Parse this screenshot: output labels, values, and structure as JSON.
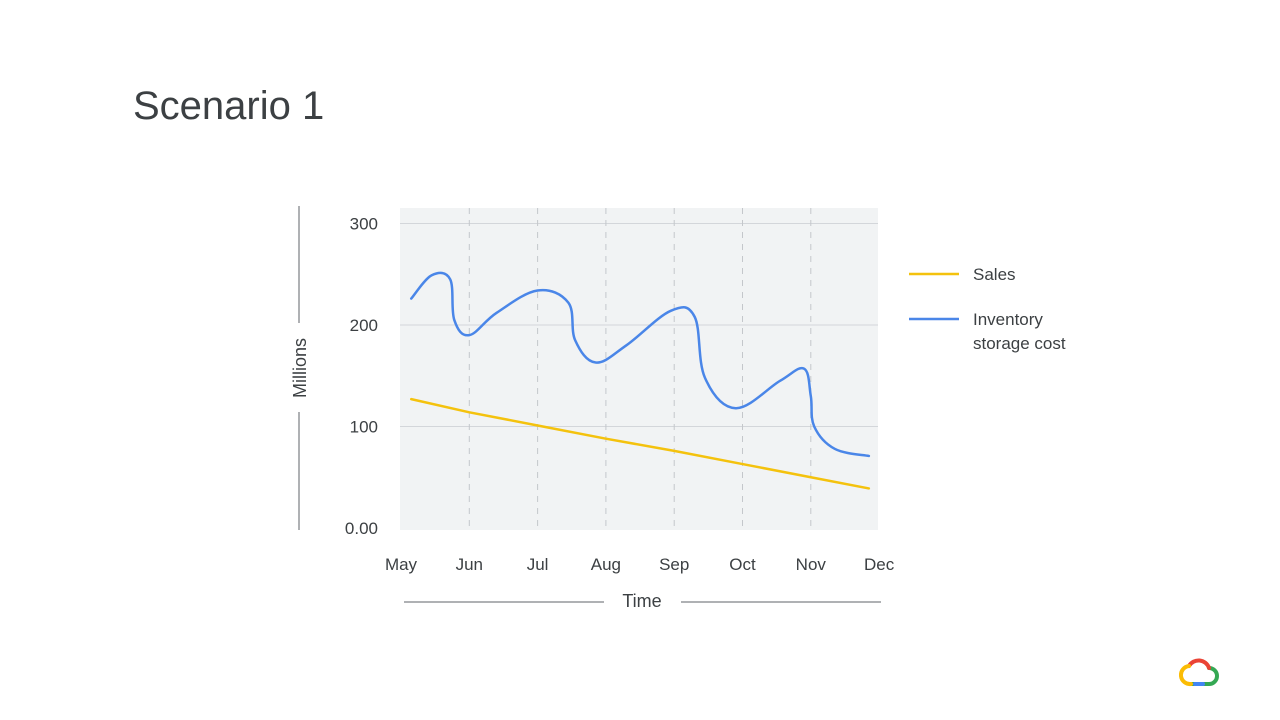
{
  "slide": {
    "title": "Scenario 1"
  },
  "chart_data": {
    "type": "line",
    "title": "",
    "xlabel": "Time",
    "ylabel": "Millions",
    "categories": [
      "May",
      "Jun",
      "Jul",
      "Aug",
      "Sep",
      "Oct",
      "Nov",
      "Dec"
    ],
    "yticks": [
      "0.00",
      "100",
      "200",
      "300"
    ],
    "ylim": [
      0,
      310
    ],
    "grid": true,
    "legend_position": "right",
    "series": [
      {
        "name": "Sales",
        "color": "#f4c20d",
        "points": [
          [
            0.15,
            127
          ],
          [
            1.0,
            114
          ],
          [
            2.0,
            101
          ],
          [
            3.0,
            88
          ],
          [
            4.0,
            76
          ],
          [
            5.0,
            63
          ],
          [
            6.0,
            50
          ],
          [
            6.85,
            39
          ]
        ]
      },
      {
        "name": "Inventory storage cost",
        "color": "#4a86e8",
        "points": [
          [
            0.15,
            226
          ],
          [
            0.45,
            249
          ],
          [
            0.72,
            245
          ],
          [
            0.78,
            205
          ],
          [
            1.0,
            190
          ],
          [
            1.4,
            212
          ],
          [
            2.0,
            234
          ],
          [
            2.45,
            222
          ],
          [
            2.55,
            185
          ],
          [
            2.85,
            163
          ],
          [
            3.3,
            180
          ],
          [
            3.95,
            214
          ],
          [
            4.3,
            208
          ],
          [
            4.45,
            148
          ],
          [
            4.9,
            118
          ],
          [
            5.55,
            145
          ],
          [
            5.9,
            157
          ],
          [
            6.0,
            130
          ],
          [
            6.05,
            100
          ],
          [
            6.35,
            78
          ],
          [
            6.85,
            71
          ]
        ]
      }
    ]
  },
  "logo": {
    "name": "google-cloud-logo"
  }
}
